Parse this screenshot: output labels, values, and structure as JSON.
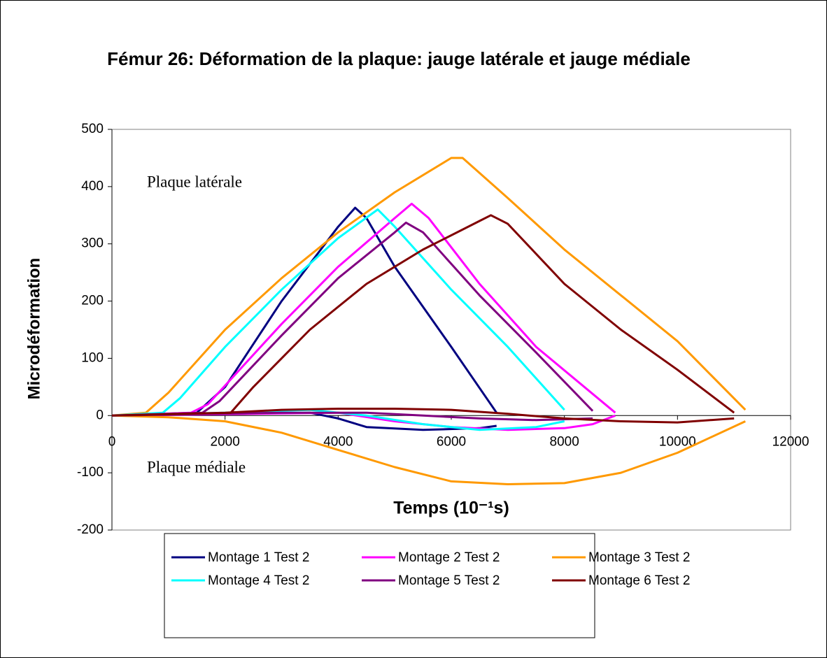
{
  "chart_data": {
    "type": "line",
    "title": "Fémur 26: Déformation de la plaque: jauge latérale et jauge médiale",
    "xlabel": "Temps (10⁻¹s)",
    "ylabel": "Microdéformation",
    "annotations": [
      "Plaque latérale",
      "Plaque médiale"
    ],
    "xlim": [
      0,
      12000
    ],
    "xticks": [
      0,
      2000,
      4000,
      6000,
      8000,
      10000,
      12000
    ],
    "ylim": [
      -200,
      500
    ],
    "yticks": [
      -200,
      -100,
      0,
      100,
      200,
      300,
      400,
      500
    ],
    "legend": "bottom",
    "series": [
      {
        "name": "Montage 1 Test 2",
        "color": "#000080",
        "x": [
          0,
          1500,
          2000,
          3000,
          4000,
          4300,
          4500,
          5000,
          6000,
          6800,
          null,
          0,
          3500,
          4000,
          4500,
          5500,
          6500,
          6800
        ],
        "values": [
          0,
          5,
          50,
          200,
          330,
          363,
          345,
          260,
          120,
          5,
          null,
          0,
          5,
          -5,
          -20,
          -25,
          -22,
          -18
        ]
      },
      {
        "name": "Montage 2 Test 2",
        "color": "#ff00ff",
        "x": [
          0,
          1400,
          1700,
          3000,
          4000,
          5000,
          5300,
          5600,
          6500,
          7500,
          8900,
          null,
          0,
          4000,
          5000,
          6000,
          7000,
          8000,
          8500,
          8900
        ],
        "values": [
          0,
          5,
          20,
          160,
          260,
          345,
          370,
          345,
          230,
          120,
          5,
          null,
          0,
          5,
          -10,
          -20,
          -25,
          -22,
          -15,
          0
        ]
      },
      {
        "name": "Montage 3 Test 2",
        "color": "#ff9900",
        "x": [
          0,
          600,
          1000,
          2000,
          3000,
          4000,
          5000,
          6000,
          6200,
          7000,
          8000,
          9000,
          10000,
          11200,
          null,
          0,
          1000,
          2000,
          3000,
          4000,
          5000,
          6000,
          7000,
          8000,
          9000,
          10000,
          11200
        ],
        "values": [
          0,
          5,
          40,
          150,
          240,
          320,
          390,
          450,
          450,
          380,
          290,
          210,
          130,
          10,
          null,
          0,
          -3,
          -10,
          -30,
          -60,
          -90,
          -115,
          -120,
          -118,
          -100,
          -65,
          -10
        ]
      },
      {
        "name": "Montage 4 Test 2",
        "color": "#00ffff",
        "x": [
          0,
          900,
          1200,
          2000,
          3000,
          4000,
          4700,
          5000,
          6000,
          7000,
          8000,
          null,
          0,
          2000,
          3500,
          4500,
          5500,
          6500,
          7500,
          8000
        ],
        "values": [
          0,
          5,
          30,
          120,
          220,
          310,
          360,
          330,
          220,
          120,
          10,
          null,
          0,
          5,
          10,
          0,
          -15,
          -25,
          -20,
          -10
        ]
      },
      {
        "name": "Montage 5 Test 2",
        "color": "#800080",
        "x": [
          0,
          1600,
          1900,
          3000,
          4000,
          5000,
          5200,
          5500,
          6500,
          7500,
          8500,
          null,
          0,
          3000,
          4500,
          5500,
          6500,
          7500,
          8500
        ],
        "values": [
          0,
          5,
          25,
          140,
          240,
          320,
          337,
          320,
          210,
          110,
          8,
          null,
          0,
          5,
          5,
          0,
          -5,
          -8,
          -5
        ]
      },
      {
        "name": "Montage 6 Test 2",
        "color": "#800000",
        "x": [
          0,
          2100,
          2500,
          3500,
          4500,
          5500,
          6500,
          6700,
          7000,
          8000,
          9000,
          10000,
          11000,
          null,
          0,
          2000,
          3000,
          4000,
          5000,
          6000,
          7000,
          8000,
          9000,
          10000,
          11000
        ],
        "values": [
          0,
          5,
          50,
          150,
          230,
          290,
          340,
          350,
          335,
          230,
          150,
          80,
          5,
          null,
          0,
          5,
          10,
          12,
          12,
          10,
          3,
          -5,
          -10,
          -12,
          -5
        ]
      }
    ]
  }
}
